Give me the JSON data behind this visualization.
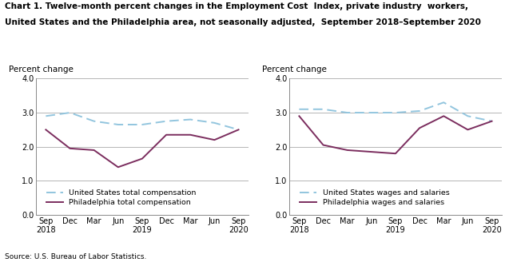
{
  "title_line1": "Chart 1. Twelve-month percent changes in the Employment Cost  Index, private industry  workers,",
  "title_line2": "United States and the Philadelphia area, not seasonally adjusted,  September 2018–September 2020",
  "source": "Source: U.S. Bureau of Labor Statistics.",
  "x_labels": [
    "Sep\n2018",
    "Dec",
    "Mar",
    "Jun",
    "Sep\n2019",
    "Dec",
    "Mar",
    "Jun",
    "Sep\n2020"
  ],
  "ylim": [
    0.0,
    4.0
  ],
  "yticks": [
    0.0,
    1.0,
    2.0,
    3.0,
    4.0
  ],
  "ylabel": "Percent change",
  "left_us": [
    2.9,
    3.0,
    2.75,
    2.65,
    2.65,
    2.75,
    2.8,
    2.7,
    2.5
  ],
  "left_phil": [
    2.5,
    1.95,
    1.9,
    1.4,
    1.65,
    2.35,
    2.35,
    2.2,
    2.5
  ],
  "left_legend1": "United States total compensation",
  "left_legend2": "Philadelphia total compensation",
  "right_us": [
    3.1,
    3.1,
    3.0,
    3.0,
    3.0,
    3.05,
    3.3,
    2.9,
    2.75
  ],
  "right_phil": [
    2.9,
    2.05,
    1.9,
    1.85,
    1.8,
    2.55,
    2.9,
    2.5,
    2.75
  ],
  "right_legend1": "United States wages and salaries",
  "right_legend2": "Philadelphia wages and salaries",
  "us_color": "#92c5de",
  "phil_color": "#7b2d5e",
  "grid_color": "#aaaaaa",
  "axis_color": "#888888",
  "title_fontsize": 7.5,
  "tick_fontsize": 7,
  "label_fontsize": 7.5,
  "legend_fontsize": 6.8,
  "source_fontsize": 6.5
}
